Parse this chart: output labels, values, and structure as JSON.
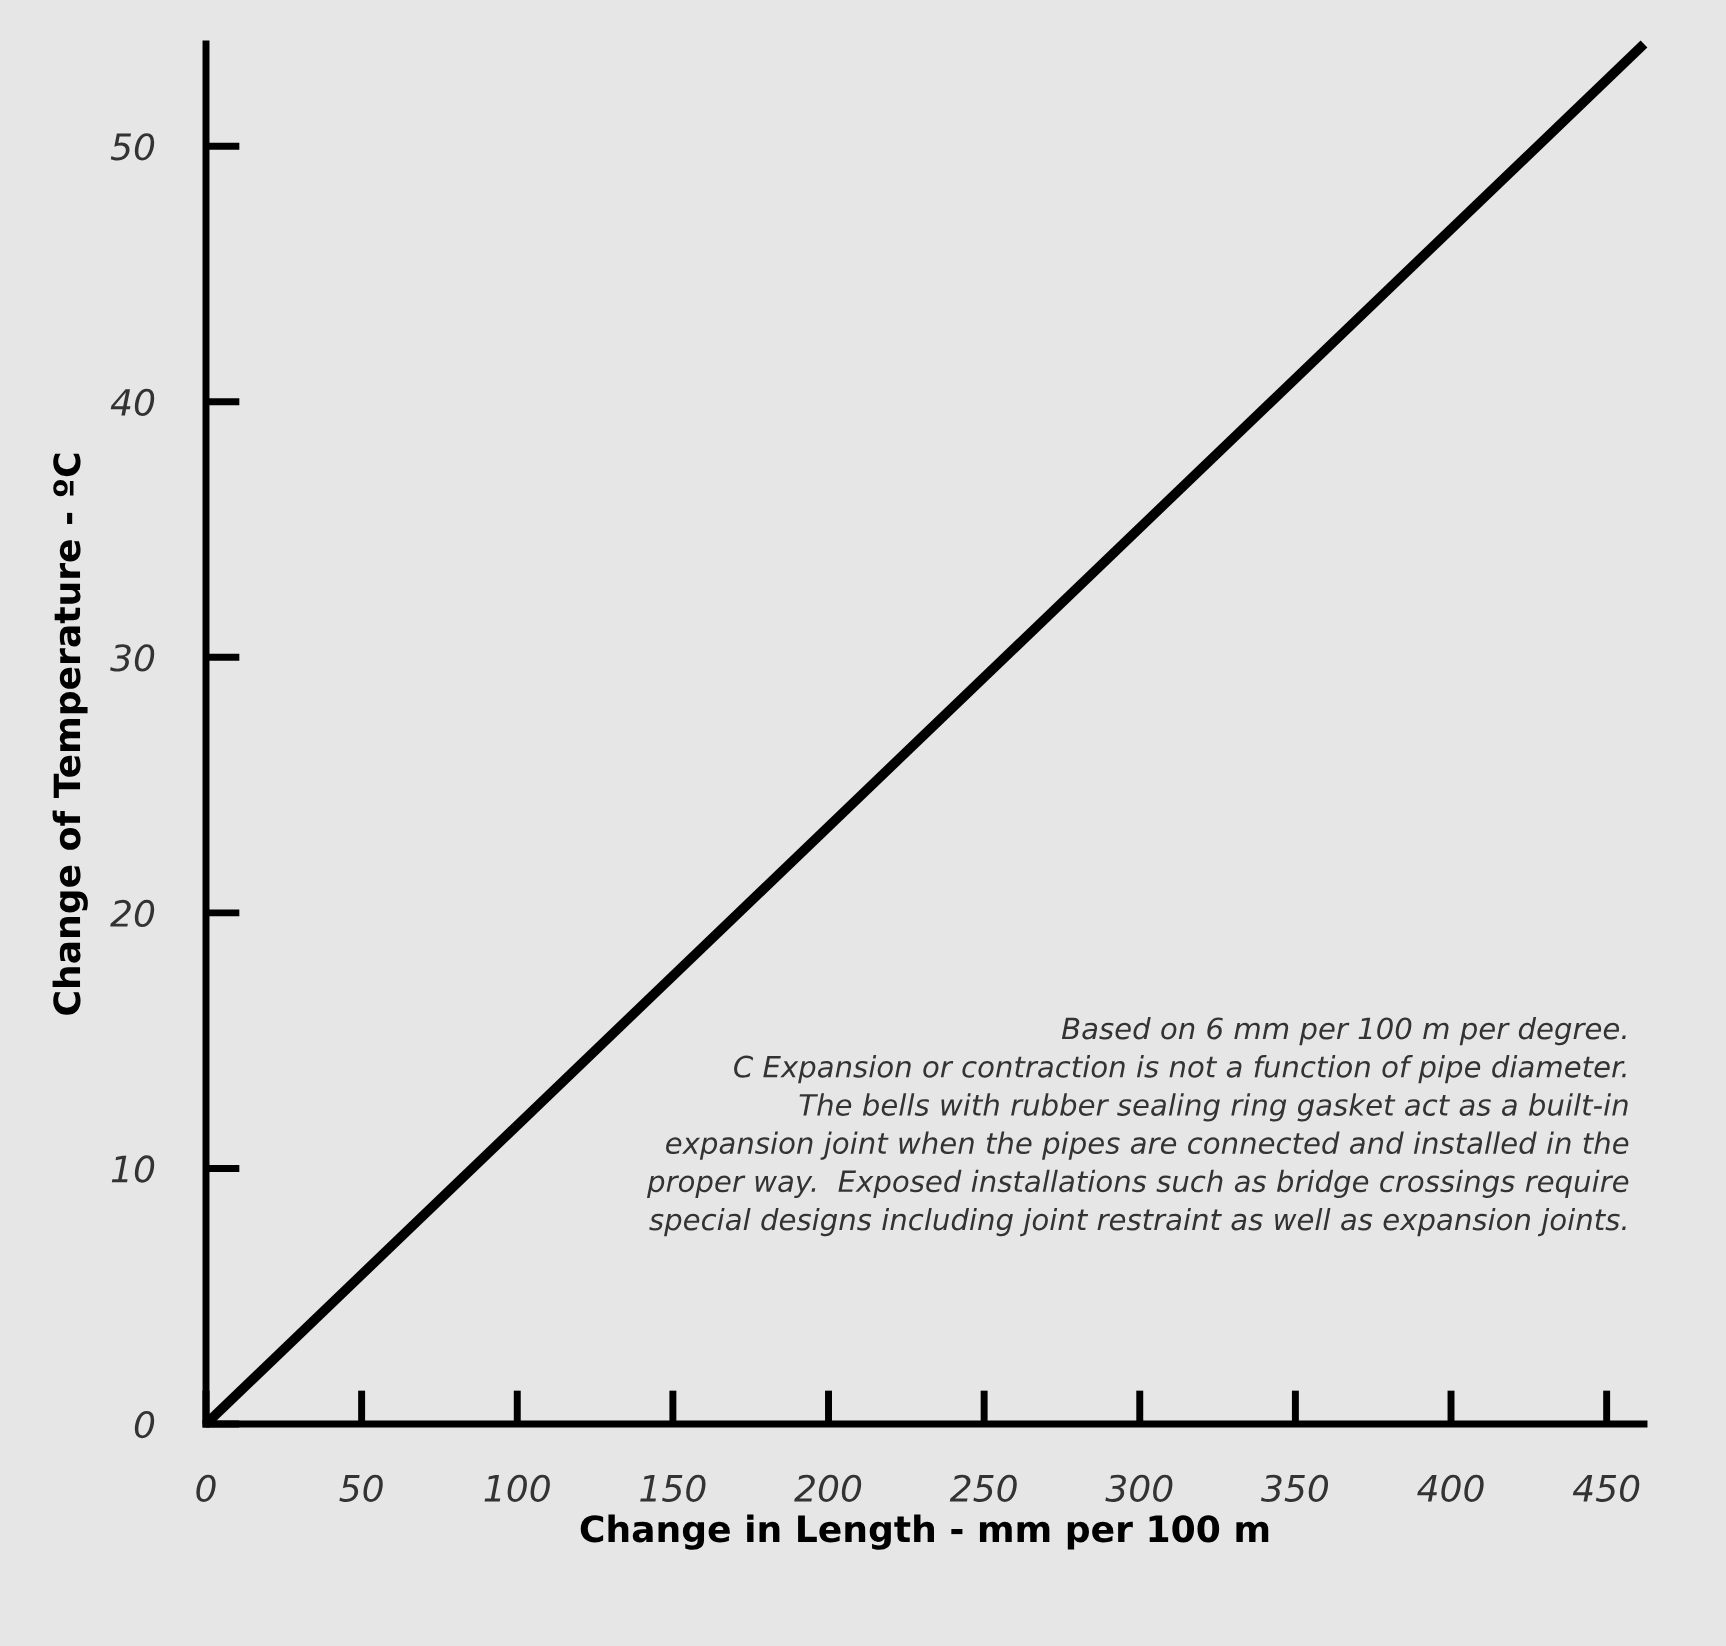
{
  "chart_data": {
    "type": "line",
    "xlabel": "Change in Length - mm per 100 m",
    "ylabel": "Change of Temperature - ºC",
    "x": [
      0,
      462
    ],
    "series": [
      {
        "color": "#000000",
        "values": [
          0,
          54
        ]
      }
    ],
    "xlim": [
      0,
      462
    ],
    "ylim": [
      0,
      54
    ],
    "xticks": [
      0,
      50,
      100,
      150,
      200,
      250,
      300,
      350,
      400,
      450
    ],
    "yticks": [
      0,
      10,
      20,
      30,
      40,
      50
    ],
    "grid": false,
    "legend": false,
    "marker": "none",
    "line_style": "solid",
    "annotations": [
      "Based on 6 mm per 100 m per degree.\nC Expansion or contraction is not a function of pipe diameter.\nThe bells with rubber sealing ring gasket act as a built-in\nexpansion joint when the pipes are connected and installed in the\nproper way.  Exposed installations such as bridge crossings require\nspecial designs including joint restraint as well as expansion joints."
    ]
  }
}
